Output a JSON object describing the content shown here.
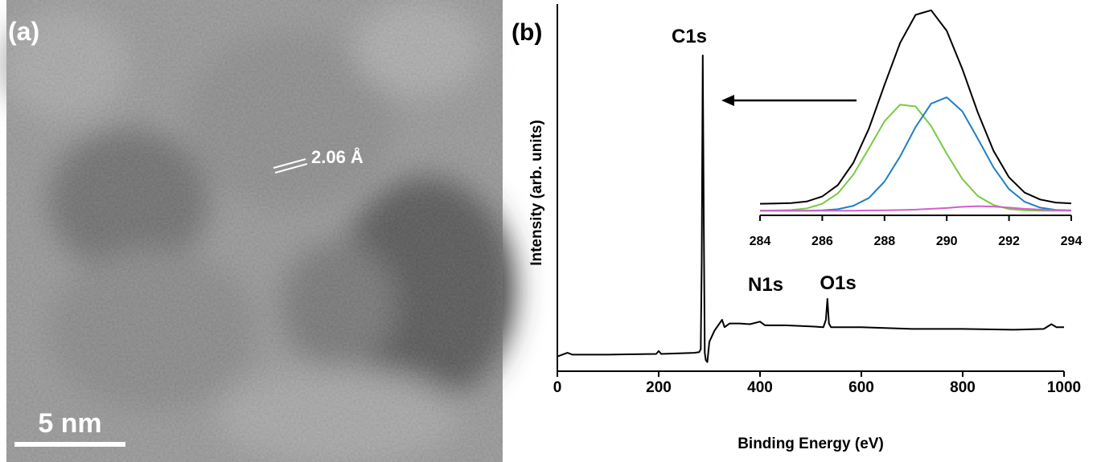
{
  "image_panel": {
    "panel_label": "(a)",
    "lattice_label": "2.06 Å",
    "scale_bar": "5 nm"
  },
  "chart_data": [
    {
      "type": "line",
      "panel_label": "(b)",
      "x_label": "Binding Energy (eV)",
      "y_label": "Intensity (arb. units)",
      "annotations": [
        "C1s",
        "N1s",
        "O1s"
      ],
      "x": [
        0,
        20,
        30,
        100,
        195,
        200,
        205,
        270,
        280,
        283,
        285,
        287,
        289,
        291,
        293,
        296,
        300,
        310,
        320,
        325,
        330,
        340,
        360,
        380,
        400,
        410,
        450,
        500,
        525,
        530,
        533,
        536,
        540,
        600,
        700,
        800,
        900,
        960,
        975,
        985,
        1000
      ],
      "series": [
        {
          "color": "#000000",
          "values": [
            4,
            5,
            4.5,
            4.5,
            4.7,
            5.5,
            4.7,
            5,
            5.2,
            6,
            30,
            86,
            40,
            5,
            3,
            2.5,
            8,
            11,
            13,
            14,
            12,
            13,
            13,
            12.8,
            13.5,
            12.5,
            12.5,
            12.2,
            12,
            14,
            19.7,
            13,
            12,
            12,
            11.5,
            11.5,
            11.3,
            11.5,
            12.8,
            12,
            12
          ]
        }
      ],
      "xlim": [
        0,
        1000
      ],
      "xticks": [
        0,
        200,
        400,
        600,
        800,
        1000
      ],
      "ylim": [
        0,
        100
      ]
    },
    {
      "type": "line",
      "x": [
        284,
        284.5,
        285,
        285.5,
        286,
        286.5,
        287,
        287.5,
        288,
        288.5,
        289,
        289.5,
        290,
        290.5,
        291,
        291.5,
        292,
        292.5,
        293,
        293.5,
        294
      ],
      "series": [
        {
          "color": "#000000",
          "values": [
            5.7,
            5.8,
            6.0,
            6.8,
            9.3,
            14.9,
            25.9,
            42.8,
            64.2,
            84.9,
            98.7,
            100.9,
            90.8,
            72.1,
            50.5,
            31.8,
            18.7,
            11.2,
            7.8,
            6.3,
            5.9
          ]
        },
        {
          "color": "#7ac943",
          "values": [
            2.3,
            2.4,
            2.6,
            3.4,
            5.7,
            10.8,
            20.1,
            33.0,
            46.3,
            54.5,
            53.6,
            43.9,
            30.3,
            17.9,
            9.5,
            5.1,
            3.1,
            2.5,
            2.3,
            2.3,
            2.3
          ]
        },
        {
          "color": "#1f7fc4",
          "values": [
            2.3,
            2.3,
            2.3,
            2.3,
            2.5,
            3.0,
            4.7,
            8.6,
            16.6,
            29.0,
            43.5,
            55.0,
            58.1,
            51.2,
            37.7,
            23.6,
            12.9,
            6.7,
            3.8,
            2.7,
            2.4
          ]
        },
        {
          "color": "#d25fc8",
          "values": [
            2.3,
            2.3,
            2.3,
            2.3,
            2.3,
            2.3,
            2.3,
            2.4,
            2.5,
            2.6,
            2.8,
            3.2,
            3.6,
            4.2,
            4.5,
            4.3,
            3.8,
            3.2,
            2.8,
            2.5,
            2.4
          ]
        }
      ],
      "xlim": [
        284,
        294
      ],
      "xticks": [
        284,
        286,
        288,
        290,
        292,
        294
      ],
      "ylim": [
        0,
        104
      ]
    }
  ]
}
